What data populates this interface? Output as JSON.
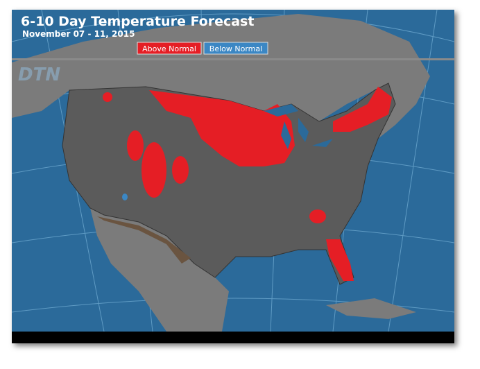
{
  "header": {
    "title": "6-10 Day Temperature Forecast",
    "subtitle": "November 07 - 11, 2015"
  },
  "legend": [
    {
      "label": "Above Normal",
      "color": "#e51e25"
    },
    {
      "label": "Below Normal",
      "color": "#3b87c4"
    }
  ],
  "watermark": "DTN"
}
